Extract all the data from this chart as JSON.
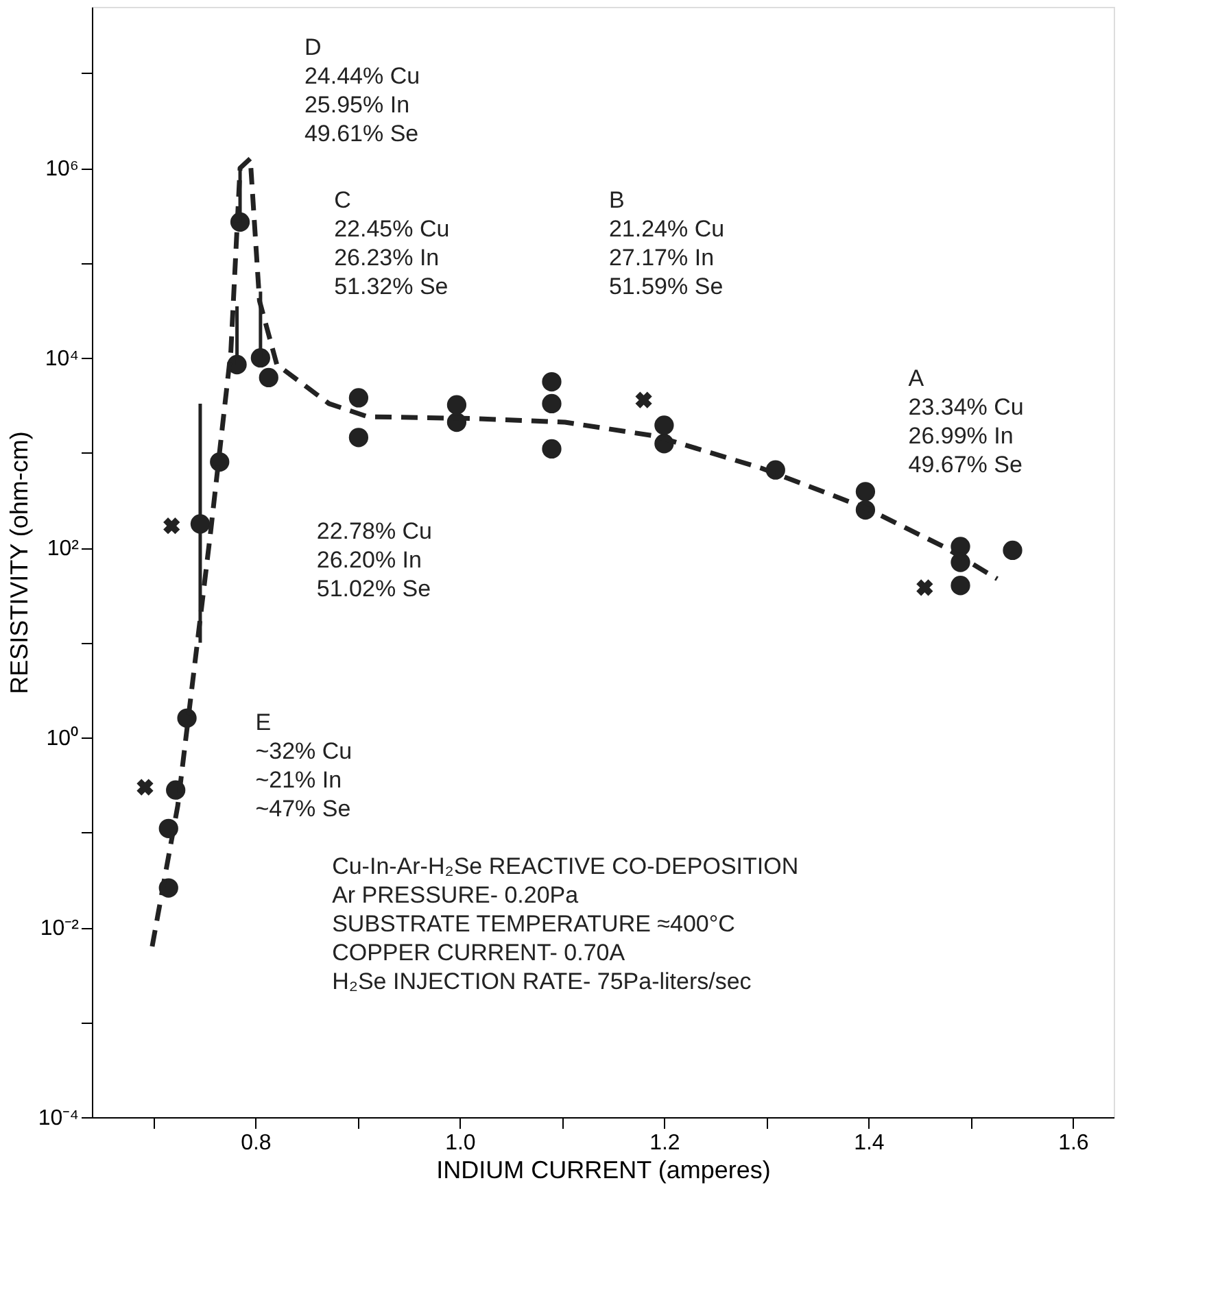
{
  "chart_data": {
    "type": "scatter",
    "xlabel": "INDIUM CURRENT    (amperes)",
    "ylabel": "RESISTIVITY    (ohm-cm)",
    "log": "y",
    "grid": false,
    "xlim": [
      0.64,
      1.64
    ],
    "ylim": [
      0.0001,
      50000000
    ],
    "xticks": [
      {
        "value": 0.7,
        "label": null
      },
      0.8,
      {
        "value": 0.9,
        "label": null
      },
      {
        "value": 1,
        "label": "1.0"
      },
      {
        "value": 1.1,
        "label": null
      },
      1.2,
      {
        "value": 1.3,
        "label": null
      },
      1.4,
      {
        "value": 1.5,
        "label": null
      },
      1.6
    ],
    "yticks": [
      {
        "value": 0.0001,
        "label": "10⁻⁴"
      },
      {
        "value": 0.001,
        "label": null
      },
      {
        "value": 0.01,
        "label": "10⁻²"
      },
      {
        "value": 0.1,
        "label": null
      },
      {
        "value": 1,
        "label": "10⁰"
      },
      {
        "value": 10,
        "label": null
      },
      {
        "value": 100,
        "label": "10²"
      },
      {
        "value": 1000,
        "label": null
      },
      {
        "value": 10000,
        "label": "10⁴"
      },
      {
        "value": 100000,
        "label": null
      },
      {
        "value": 1000000,
        "label": "10⁶"
      },
      {
        "value": 10000000,
        "label": null
      }
    ],
    "series": [
      {
        "marker": "circle",
        "color": "#222222",
        "x": [
          0.715,
          0.715,
          0.722,
          0.733,
          0.746,
          0.765,
          0.785,
          0.782,
          0.805,
          0.813,
          0.901,
          0.901,
          0.997,
          0.997,
          1.09,
          1.09,
          1.09,
          1.2,
          1.2,
          1.309,
          1.397,
          1.397,
          1.49,
          1.49,
          1.49,
          1.541
        ],
        "values": [
          0.026,
          0.11,
          0.28,
          1.6,
          178,
          800,
          270000,
          8500,
          10000,
          6200,
          3800,
          1450,
          3200,
          2100,
          5600,
          3300,
          1100,
          1950,
          1250,
          660,
          390,
          250,
          103,
          70,
          40,
          94
        ],
        "errors": [
          null,
          null,
          null,
          null,
          [
            10,
            3300
          ],
          null,
          [
            270000,
            1000000
          ],
          [
            8500,
            35000
          ],
          [
            10000,
            50000
          ],
          null,
          null,
          null,
          null,
          null,
          null,
          null,
          null,
          null,
          null,
          null,
          null,
          null,
          null,
          null,
          null,
          null
        ]
      },
      {
        "marker": "cross",
        "color": "#222222",
        "x": [
          0.692,
          0.718,
          1.18,
          1.455
        ],
        "values": [
          0.3,
          170,
          3600,
          38
        ]
      },
      {
        "type": "line",
        "line_style": "dashed",
        "color": "#222222",
        "x": [
          0.699,
          0.724,
          0.756,
          0.776,
          0.785,
          0.795,
          0.804,
          0.821,
          0.872,
          0.91,
          1.013,
          1.103,
          1.192,
          1.295,
          1.397,
          1.474,
          1.526
        ],
        "values": [
          0.0063,
          0.19,
          141,
          11750,
          1000000,
          1260000,
          40000,
          8500,
          3300,
          2400,
          2300,
          2100,
          1500,
          690,
          263,
          102,
          47
        ]
      }
    ],
    "annotations": [
      "D\n24.44% Cu\n25.95% In\n49.61% Se",
      "C\n22.45% Cu\n26.23% In\n51.32% Se",
      "B\n21.24% Cu\n27.17% In\n51.59% Se",
      "A\n23.34% Cu\n26.99% In\n49.67% Se",
      "22.78% Cu\n26.20% In\n51.02% Se",
      "E\n~32% Cu\n~21% In\n~47% Se",
      "Cu-In-Ar-H₂Se REACTIVE CO-DEPOSITION\nAr PRESSURE- 0.20Pa\nSUBSTRATE TEMPERATURE ≈400°C\nCOPPER CURRENT- 0.70A\nH₂Se INJECTION RATE- 75Pa-liters/sec"
    ]
  }
}
